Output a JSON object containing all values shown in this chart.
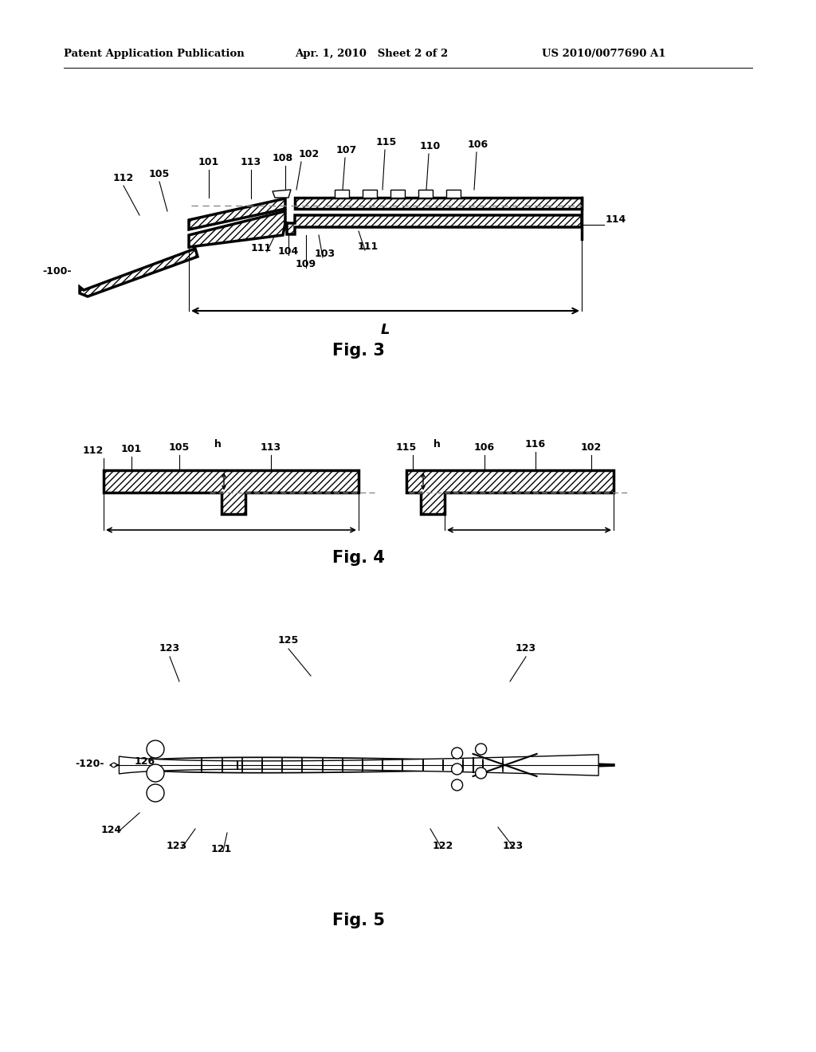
{
  "header_left": "Patent Application Publication",
  "header_mid": "Apr. 1, 2010   Sheet 2 of 2",
  "header_right": "US 2010/0077690 A1",
  "fig3_label": "Fig. 3",
  "fig4_label": "Fig. 4",
  "fig5_label": "Fig. 5",
  "bg_color": "#ffffff",
  "line_color": "#000000"
}
